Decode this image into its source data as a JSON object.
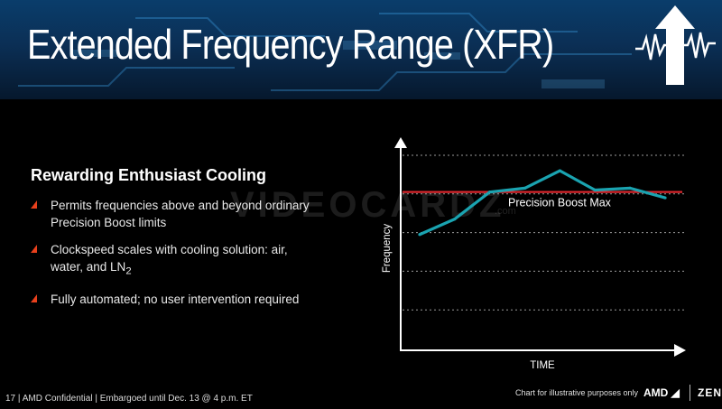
{
  "slide": {
    "title": "Extended Frequency Range (XFR)",
    "heading": "Rewarding Enthusiast Cooling",
    "bullets": [
      "Permits frequencies above and beyond ordinary Precision Boost limits",
      "Clockspeed scales with cooling solution: air, water, and LN",
      "Fully automated; no user intervention required"
    ],
    "bullet2_subscript": "2",
    "watermark": "VIDEOCARDZ",
    "watermark_sub": ".com"
  },
  "footer": {
    "left": "17 | AMD Confidential | Embargoed until Dec. 13 @ 4 p.m. ET",
    "chart_note": "Chart for illustrative purposes only",
    "brand": "AMD",
    "product": "ZEN"
  },
  "colors": {
    "series": "#1aa3b0",
    "threshold": "#d9262c",
    "bullet": "#e8401c"
  },
  "chart_data": {
    "type": "line",
    "xlabel": "TIME",
    "ylabel": "Frequency",
    "x": [
      0,
      1,
      2,
      3,
      4,
      5,
      6,
      7
    ],
    "xlim": [
      0,
      7
    ],
    "ylim": [
      0,
      5
    ],
    "grid": true,
    "series": [
      {
        "values": [
          2.95,
          3.35,
          4.05,
          4.15,
          4.6,
          4.1,
          4.15,
          3.9
        ]
      }
    ],
    "threshold": {
      "name": "Precision Boost Max",
      "value": 4.05
    }
  }
}
